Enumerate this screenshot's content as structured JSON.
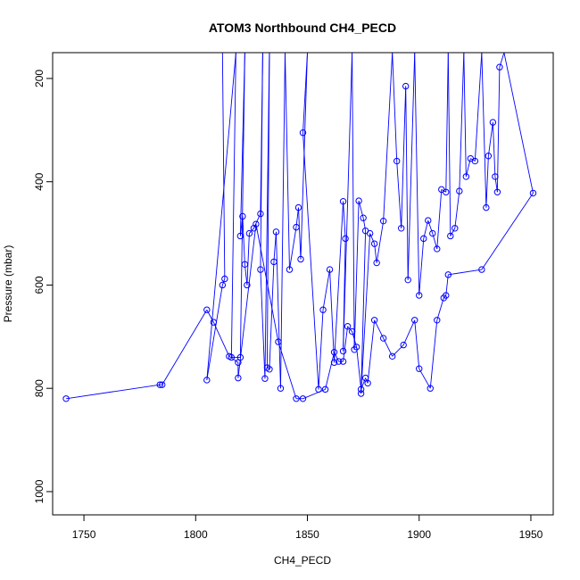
{
  "chart_data": {
    "type": "scatter",
    "title": "ATOM3 Northbound CH4_PECD",
    "xlabel": "CH4_PECD",
    "ylabel": "Pressure (mbar)",
    "xlim": [
      1736,
      1960
    ],
    "ylim": [
      1045,
      150
    ],
    "y_inverted": true,
    "x_ticks": [
      1750,
      1800,
      1850,
      1900,
      1950
    ],
    "y_ticks": [
      200,
      400,
      600,
      800,
      1000
    ],
    "grid": false,
    "legend": "none",
    "color": "#0000ff",
    "marker": "open-circle",
    "connected": true,
    "series": [
      {
        "points": [
          [
            1812,
            150
          ],
          [
            1813,
            588
          ],
          [
            1812,
            600
          ],
          [
            1805,
            784
          ],
          [
            1818,
            150
          ],
          [
            1816,
            740
          ],
          [
            1820,
            740
          ],
          [
            1822,
            150
          ],
          [
            1820,
            505
          ],
          [
            1821,
            467
          ],
          [
            1822,
            560
          ],
          [
            1823,
            600
          ],
          [
            1824,
            500
          ],
          [
            1826,
            490
          ],
          [
            1829,
            462
          ],
          [
            1830,
            150
          ],
          [
            1829,
            570
          ],
          [
            1831,
            781
          ],
          [
            1833,
            150
          ],
          [
            1832,
            760
          ],
          [
            1833,
            763
          ],
          [
            1835,
            555
          ],
          [
            1836,
            497
          ],
          [
            1838,
            800
          ],
          [
            1840,
            150
          ],
          [
            1842,
            570
          ],
          [
            1845,
            488
          ],
          [
            1846,
            450
          ],
          [
            1847,
            550
          ],
          [
            1850,
            150
          ],
          [
            1848,
            305
          ],
          [
            1855,
            802
          ],
          [
            1857,
            648
          ],
          [
            1860,
            570
          ],
          [
            1862,
            750
          ],
          [
            1866,
            438
          ],
          [
            1867,
            510
          ],
          [
            1866,
            728
          ],
          [
            1870,
            150
          ],
          [
            1871,
            725
          ],
          [
            1873,
            437
          ],
          [
            1875,
            470
          ],
          [
            1876,
            495
          ],
          [
            1874,
            810
          ],
          [
            1878,
            500
          ],
          [
            1880,
            520
          ],
          [
            1881,
            557
          ],
          [
            1884,
            476
          ],
          [
            1888,
            150
          ],
          [
            1890,
            360
          ],
          [
            1892,
            490
          ],
          [
            1894,
            215
          ],
          [
            1895,
            590
          ],
          [
            1898,
            150
          ],
          [
            1900,
            620
          ],
          [
            1902,
            510
          ],
          [
            1904,
            475
          ],
          [
            1906,
            500
          ],
          [
            1908,
            530
          ],
          [
            1910,
            415
          ],
          [
            1912,
            420
          ],
          [
            1913,
            150
          ],
          [
            1914,
            505
          ],
          [
            1916,
            490
          ],
          [
            1918,
            418
          ],
          [
            1920,
            150
          ],
          [
            1921,
            390
          ],
          [
            1923,
            355
          ],
          [
            1925,
            360
          ],
          [
            1928,
            150
          ],
          [
            1930,
            450
          ],
          [
            1931,
            350
          ],
          [
            1933,
            285
          ],
          [
            1934,
            390
          ],
          [
            1935,
            420
          ],
          [
            1936,
            178
          ],
          [
            1938,
            150
          ],
          [
            1951,
            422
          ],
          [
            1928,
            570
          ],
          [
            1913,
            580
          ],
          [
            1912,
            620
          ],
          [
            1911,
            625
          ],
          [
            1908,
            668
          ],
          [
            1905,
            800
          ],
          [
            1900,
            762
          ],
          [
            1898,
            668
          ],
          [
            1893,
            716
          ],
          [
            1888,
            738
          ],
          [
            1884,
            703
          ],
          [
            1880,
            668
          ],
          [
            1877,
            790
          ],
          [
            1876,
            780
          ],
          [
            1874,
            802
          ],
          [
            1872,
            720
          ],
          [
            1870,
            690
          ],
          [
            1868,
            680
          ],
          [
            1866,
            748
          ],
          [
            1864,
            748
          ],
          [
            1862,
            730
          ],
          [
            1858,
            802
          ],
          [
            1848,
            820
          ],
          [
            1845,
            820
          ],
          [
            1837,
            710
          ],
          [
            1827,
            482
          ],
          [
            1819,
            780
          ],
          [
            1819,
            750
          ],
          [
            1815,
            738
          ],
          [
            1808,
            672
          ],
          [
            1805,
            648
          ],
          [
            1785,
            793
          ],
          [
            1784,
            793
          ],
          [
            1742,
            820
          ]
        ]
      }
    ]
  }
}
